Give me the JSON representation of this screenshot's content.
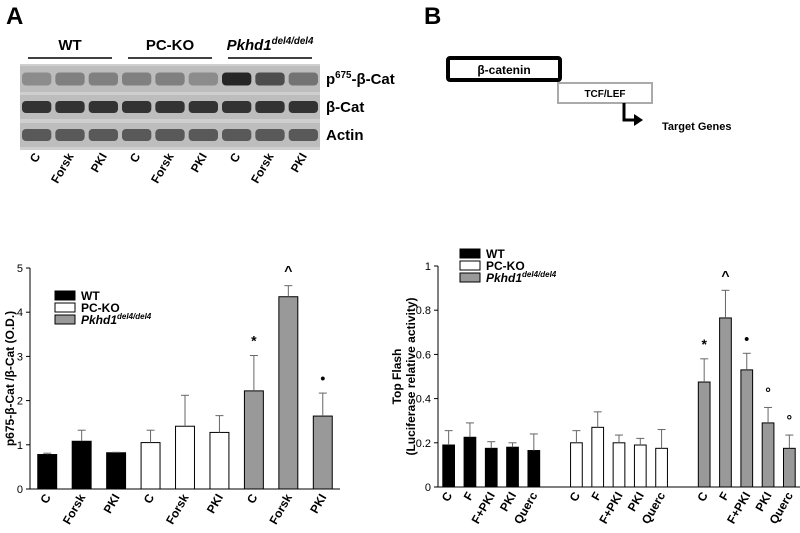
{
  "panel_labels": [
    "A",
    "B"
  ],
  "blot": {
    "groups": [
      {
        "text": "WT"
      },
      {
        "text": "PC-KO"
      },
      {
        "text": "Pkhd1",
        "sup": "del4/del4"
      }
    ],
    "rows": [
      {
        "text": "p",
        "sup": "675",
        "after": "-β-Cat"
      },
      {
        "text": "β-Cat"
      },
      {
        "text": "Actin"
      }
    ],
    "lanes": [
      "C",
      "Forsk",
      "PKI",
      "C",
      "Forsk",
      "PKI",
      "C",
      "Forsk",
      "PKI"
    ]
  },
  "diagram": {
    "box1": "β-catenin",
    "box2": "TCF/LEF",
    "target": "Target Genes"
  },
  "chart_data": [
    {
      "type": "bar",
      "y_label": [
        "p675-β-Cat /β-Cat (O.D.)"
      ],
      "categories": [
        "C",
        "Forsk",
        "PKI",
        "C",
        "Forsk",
        "PKI",
        "C",
        "Forsk",
        "PKI"
      ],
      "ylim": [
        0,
        5
      ],
      "yticks": [
        0,
        1,
        2,
        3,
        4,
        5
      ],
      "series": [
        {
          "name": "WT",
          "color": "#000000",
          "values": [
            0.78,
            1.08,
            0.82,
            null,
            null,
            null,
            null,
            null,
            null
          ],
          "errors": [
            0.03,
            0.25,
            0.01,
            null,
            null,
            null,
            null,
            null,
            null
          ]
        },
        {
          "name": "PC-KO",
          "color": "#ffffff",
          "values": [
            null,
            null,
            null,
            1.05,
            1.42,
            1.28,
            null,
            null,
            null
          ],
          "errors": [
            null,
            null,
            null,
            0.28,
            0.7,
            0.38,
            null,
            null,
            null
          ]
        },
        {
          "name": "Pkhd1",
          "name_sup": "del4/del4",
          "color": "#999999",
          "values": [
            null,
            null,
            null,
            null,
            null,
            null,
            2.22,
            4.35,
            1.65
          ],
          "errors": [
            null,
            null,
            null,
            null,
            null,
            null,
            0.8,
            0.25,
            0.52
          ],
          "annotations": [
            null,
            null,
            null,
            null,
            null,
            null,
            "*",
            "^",
            "•"
          ]
        }
      ]
    },
    {
      "type": "bar",
      "y_label": [
        "Top Flash",
        "(Luciferase relative activity)"
      ],
      "categories": [
        "C",
        "F",
        "F+PKI",
        "PKI",
        "Querc",
        null,
        "C",
        "F",
        "F+PKI",
        "PKI",
        "Querc",
        null,
        "C",
        "F",
        "F+PKI",
        "PKI",
        "Querc"
      ],
      "ylim": [
        0,
        1
      ],
      "yticks": [
        0,
        0.2,
        0.4,
        0.6,
        0.8,
        1
      ],
      "series": [
        {
          "name": "WT",
          "color": "#000000",
          "values": [
            0.19,
            0.225,
            0.175,
            0.18,
            0.165,
            null,
            null,
            null,
            null,
            null,
            null,
            null,
            null,
            null,
            null,
            null,
            null
          ],
          "errors": [
            0.065,
            0.065,
            0.03,
            0.02,
            0.075,
            null,
            null,
            null,
            null,
            null,
            null,
            null,
            null,
            null,
            null,
            null,
            null
          ]
        },
        {
          "name": "PC-KO",
          "color": "#ffffff",
          "values": [
            null,
            null,
            null,
            null,
            null,
            null,
            0.2,
            0.27,
            0.2,
            0.19,
            0.175,
            null,
            null,
            null,
            null,
            null,
            null
          ],
          "errors": [
            null,
            null,
            null,
            null,
            null,
            null,
            0.055,
            0.07,
            0.035,
            0.03,
            0.085,
            null,
            null,
            null,
            null,
            null,
            null
          ]
        },
        {
          "name": "Pkhd1",
          "name_sup": "del4/del4",
          "color": "#999999",
          "values": [
            null,
            null,
            null,
            null,
            null,
            null,
            null,
            null,
            null,
            null,
            null,
            null,
            0.475,
            0.765,
            0.53,
            0.29,
            0.175
          ],
          "errors": [
            null,
            null,
            null,
            null,
            null,
            null,
            null,
            null,
            null,
            null,
            null,
            null,
            0.105,
            0.125,
            0.075,
            0.07,
            0.06
          ],
          "annotations": [
            null,
            null,
            null,
            null,
            null,
            null,
            null,
            null,
            null,
            null,
            null,
            null,
            "*",
            "^",
            "•",
            "°",
            "°"
          ]
        }
      ]
    }
  ]
}
